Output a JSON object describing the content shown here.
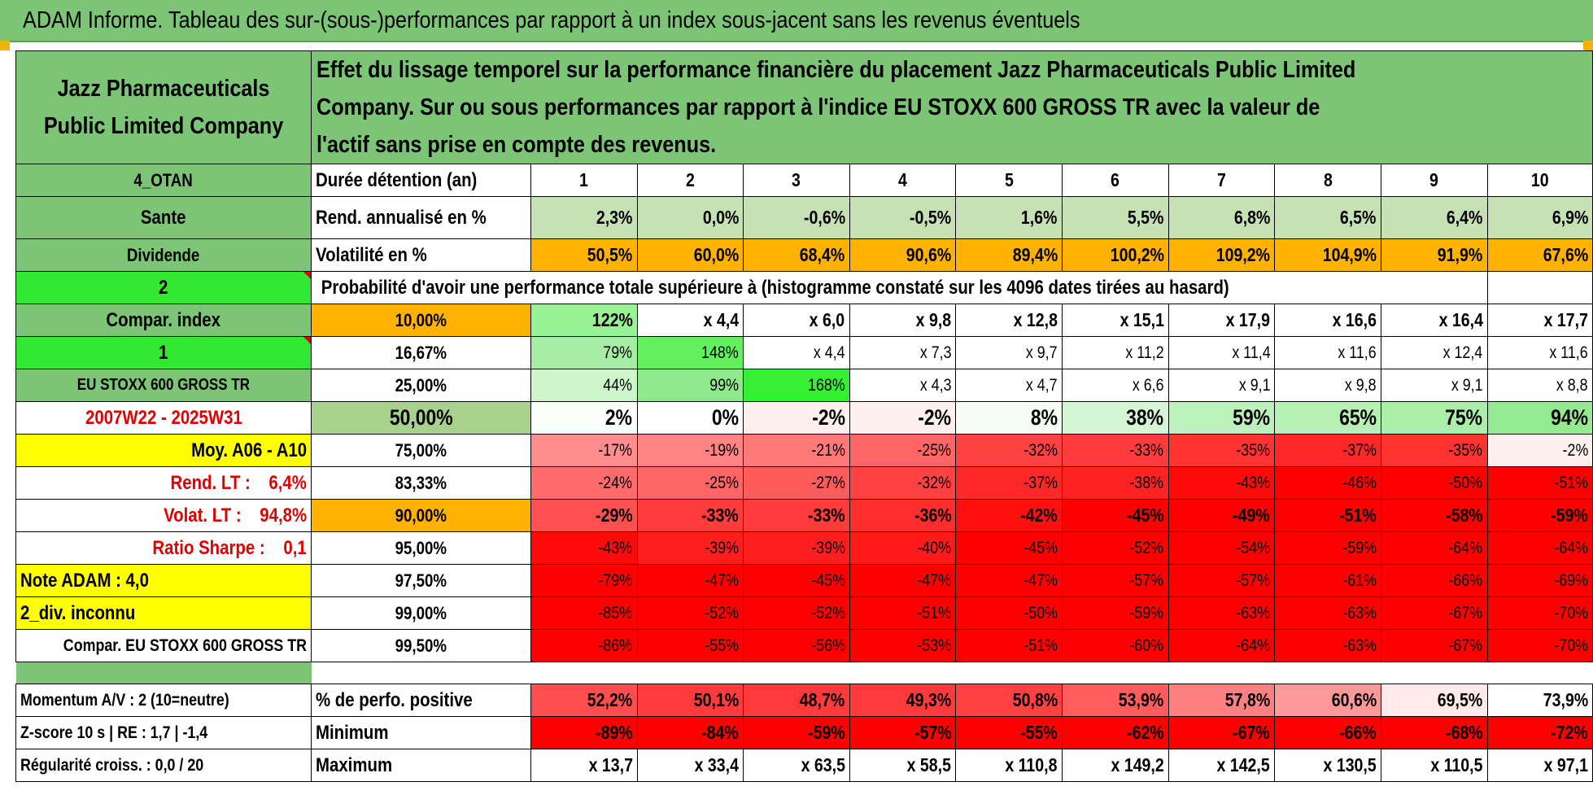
{
  "title": "ADAM Informe. Tableau des sur-(sous-)performances par rapport à un index sous-jacent sans les revenus éventuels",
  "header": {
    "company": "Jazz Pharmaceuticals Public Limited Company",
    "description": "Effet du lissage temporel sur la performance financière du placement Jazz Pharmaceuticals Public Limited Company. Sur ou sous performances par rapport à l'indice EU STOXX 600 GROSS TR avec la valeur de l'actif sans prise en compte des revenus."
  },
  "colors": {
    "title_bg": "#7cc576",
    "green_label": "#7cc576",
    "bright_green": "#33e833",
    "orange": "#ffb300",
    "yellow": "#ffff00",
    "red_text": "#e00000",
    "red_cell": "#ff0000"
  },
  "rows": [
    {
      "label": "4_OTAN",
      "metric": "Durée détention (an)",
      "cells": [
        "1",
        "2",
        "3",
        "4",
        "5",
        "6",
        "7",
        "8",
        "9",
        "10"
      ]
    },
    {
      "label": "Sante",
      "metric": "Rend. annualisé en %",
      "cells": [
        "2,3%",
        "0,0%",
        "-0,6%",
        "-0,5%",
        "1,6%",
        "5,5%",
        "6,8%",
        "6,5%",
        "6,4%",
        "6,9%"
      ]
    },
    {
      "label": "Dividende",
      "metric": "Volatilité en %",
      "cells": [
        "50,5%",
        "60,0%",
        "68,4%",
        "90,6%",
        "89,4%",
        "100,2%",
        "109,2%",
        "104,9%",
        "91,9%",
        "67,6%"
      ]
    },
    {
      "label": "2",
      "metric": "Probabilité d'avoir une performance totale supérieure à (histogramme constaté sur les 4096 dates tirées au hasard)",
      "cells": []
    },
    {
      "label": "Compar. index",
      "metric": "10,00%",
      "cells": [
        "122%",
        "x 4,4",
        "x 6,0",
        "x 9,8",
        "x 12,8",
        "x 15,1",
        "x 17,9",
        "x 16,6",
        "x 16,4",
        "x 17,7"
      ]
    },
    {
      "label": "1",
      "metric": "16,67%",
      "cells": [
        "79%",
        "148%",
        "x 4,4",
        "x 7,3",
        "x 9,7",
        "x 11,2",
        "x 11,4",
        "x 11,6",
        "x 12,4",
        "x 11,6"
      ]
    },
    {
      "label": "EU STOXX 600 GROSS TR",
      "metric": "25,00%",
      "cells": [
        "44%",
        "99%",
        "168%",
        "x 4,3",
        "x 4,7",
        "x 6,6",
        "x 9,1",
        "x 9,8",
        "x 9,1",
        "x 8,8"
      ]
    },
    {
      "label": "2007W22 - 2025W31",
      "metric": "50,00%",
      "cells": [
        "2%",
        "0%",
        "-2%",
        "-2%",
        "8%",
        "38%",
        "59%",
        "65%",
        "75%",
        "94%"
      ]
    },
    {
      "label": "Moy. A06 - A10",
      "metric": "75,00%",
      "cells": [
        "-17%",
        "-19%",
        "-21%",
        "-25%",
        "-32%",
        "-33%",
        "-35%",
        "-37%",
        "-35%",
        "-2%"
      ]
    },
    {
      "label": "Rend. LT :    6,4%",
      "metric": "83,33%",
      "cells": [
        "-24%",
        "-25%",
        "-27%",
        "-32%",
        "-37%",
        "-38%",
        "-43%",
        "-46%",
        "-50%",
        "-51%"
      ]
    },
    {
      "label": "Volat. LT :    94,8%",
      "metric": "90,00%",
      "cells": [
        "-29%",
        "-33%",
        "-33%",
        "-36%",
        "-42%",
        "-45%",
        "-49%",
        "-51%",
        "-58%",
        "-59%"
      ]
    },
    {
      "label": "Ratio Sharpe :    0,1",
      "metric": "95,00%",
      "cells": [
        "-43%",
        "-39%",
        "-39%",
        "-40%",
        "-45%",
        "-52%",
        "-54%",
        "-59%",
        "-64%",
        "-64%"
      ]
    },
    {
      "label": "Note ADAM : 4,0",
      "metric": "97,50%",
      "cells": [
        "-79%",
        "-47%",
        "-45%",
        "-47%",
        "-47%",
        "-57%",
        "-57%",
        "-61%",
        "-66%",
        "-69%"
      ]
    },
    {
      "label": "2_div. inconnu",
      "metric": "99,00%",
      "cells": [
        "-85%",
        "-52%",
        "-52%",
        "-51%",
        "-50%",
        "-59%",
        "-63%",
        "-63%",
        "-67%",
        "-70%"
      ]
    },
    {
      "label": "Compar. EU STOXX 600 GROSS TR",
      "metric": "99,50%",
      "cells": [
        "-86%",
        "-55%",
        "-56%",
        "-53%",
        "-51%",
        "-60%",
        "-64%",
        "-63%",
        "-67%",
        "-70%"
      ]
    },
    {
      "label": "",
      "metric": "",
      "cells": []
    },
    {
      "label": "Momentum A/V : 2 (10=neutre)",
      "metric": "% de perfo. positive",
      "cells": [
        "52,2%",
        "50,1%",
        "48,7%",
        "49,3%",
        "50,8%",
        "53,9%",
        "57,8%",
        "60,6%",
        "69,5%",
        "73,9%"
      ]
    },
    {
      "label": "Z-score 10 s | RE : 1,7 | -1,4",
      "metric": "Minimum",
      "cells": [
        "-89%",
        "-84%",
        "-59%",
        "-57%",
        "-55%",
        "-62%",
        "-67%",
        "-66%",
        "-68%",
        "-72%"
      ]
    },
    {
      "label": "Régularité croiss. : 0,0 / 20",
      "metric": "Maximum",
      "cells": [
        "x 13,7",
        "x 33,4",
        "x 63,5",
        "x 58,5",
        "x 110,8",
        "x 149,2",
        "x 142,5",
        "x 130,5",
        "x 110,5",
        "x 97,1"
      ]
    }
  ]
}
